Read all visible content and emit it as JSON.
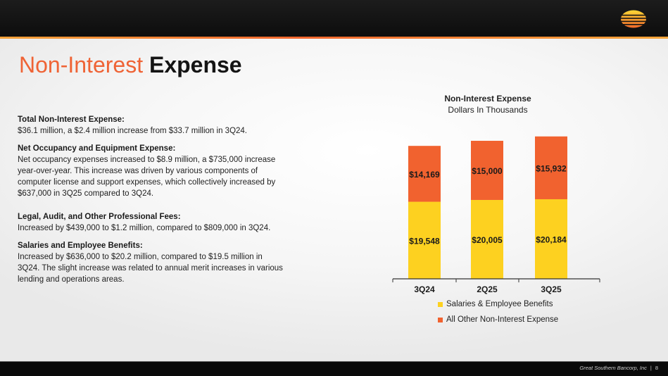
{
  "title": {
    "light": "Non-Interest",
    "bold": "Expense"
  },
  "sections": [
    {
      "heading": "Total Non-Interest Expense:",
      "body": "$36.1 million, a $2.4 million increase from $33.7 million in 3Q24."
    },
    {
      "heading": "Net Occupancy and Equipment Expense:",
      "body": "Net occupancy expenses increased to $8.9 million, a $735,000 increase year-over-year. This increase was driven by various components of computer license and support expenses, which collectively increased by $637,000 in 3Q25 compared to 3Q24."
    },
    {
      "heading": "Legal, Audit, and Other Professional Fees:",
      "body": "Increased by $439,000 to $1.2 million, compared to $809,000 in 3Q24."
    },
    {
      "heading": "Salaries and Employee Benefits:",
      "body": "Increased by $636,000 to $20.2 million, compared to $19.5 million in 3Q24. The slight increase was related to annual merit increases in various lending and operations areas."
    }
  ],
  "chart_data": {
    "type": "bar",
    "stacked": true,
    "title": "Non-Interest Expense",
    "subtitle": "Dollars In Thousands",
    "categories": [
      "3Q24",
      "2Q25",
      "3Q25"
    ],
    "series": [
      {
        "name": "Salaries & Employee Benefits",
        "color": "#fdd120",
        "values": [
          19548,
          20005,
          20184
        ],
        "labels": [
          "$19,548",
          "$20,005",
          "$20,184"
        ]
      },
      {
        "name": "All Other Non-Interest Expense",
        "color": "#f1622f",
        "values": [
          14169,
          15000,
          15932
        ],
        "labels": [
          "$14,169",
          "$15,000",
          "$15,932"
        ]
      }
    ],
    "ylim": [
      0,
      40000
    ],
    "grid": false,
    "legend": "bottom"
  },
  "footer": {
    "company": "Great Southern Bancorp, Inc",
    "separator": "|",
    "page": "8"
  },
  "colors": {
    "accent": "#ef6335",
    "stripe": "#f1662e",
    "bar_yellow": "#fdd120",
    "bar_orange": "#f1622f"
  }
}
